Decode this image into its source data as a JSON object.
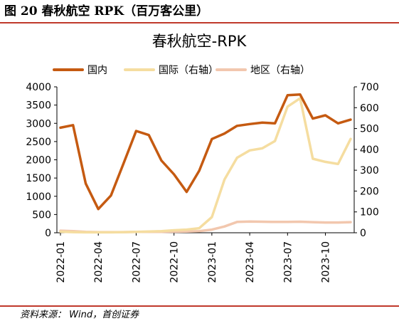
{
  "figure": {
    "label": "图 20 春秋航空 RPK（百万客公里）",
    "source": "资料来源： Wind，首创证券"
  },
  "chart_data": {
    "type": "line",
    "title": "春秋航空-RPK",
    "x": [
      "2022-01",
      "2022-02",
      "2022-03",
      "2022-04",
      "2022-05",
      "2022-06",
      "2022-07",
      "2022-08",
      "2022-09",
      "2022-10",
      "2022-11",
      "2022-12",
      "2023-01",
      "2023-02",
      "2023-03",
      "2023-04",
      "2023-05",
      "2023-06",
      "2023-07",
      "2023-08",
      "2023-09",
      "2023-10",
      "2023-11",
      "2023-12"
    ],
    "x_tick_labels": [
      "2022-01",
      "2022-04",
      "2022-07",
      "2022-10",
      "2023-01",
      "2023-04",
      "2023-07",
      "2023-10"
    ],
    "y_left": {
      "range": [
        0,
        4000
      ],
      "ticks": [
        "0",
        "500",
        "1000",
        "1500",
        "2000",
        "2500",
        "3000",
        "3500",
        "4000"
      ]
    },
    "y_right": {
      "range": [
        0,
        700
      ],
      "ticks": [
        "0",
        "100",
        "200",
        "300",
        "400",
        "500",
        "600",
        "700"
      ]
    },
    "legend_position": "top",
    "series": [
      {
        "name": "国内",
        "axis": "left",
        "color": "#c55a11",
        "width": 3.5,
        "values": [
          2880,
          2950,
          1350,
          650,
          1020,
          1900,
          2790,
          2680,
          1980,
          1600,
          1120,
          1700,
          2570,
          2720,
          2930,
          2980,
          3020,
          3000,
          3770,
          3790,
          3130,
          3220,
          3000,
          3100
        ]
      },
      {
        "name": "国际（右轴）",
        "axis": "right",
        "color": "#f5dda0",
        "width": 3.5,
        "values": [
          5,
          3,
          2,
          2,
          2,
          3,
          4,
          6,
          8,
          12,
          15,
          22,
          75,
          255,
          360,
          395,
          405,
          440,
          605,
          645,
          355,
          340,
          330,
          450
        ]
      },
      {
        "name": "地区（右轴）",
        "axis": "right",
        "color": "#f2c7ae",
        "width": 3.5,
        "values": [
          10,
          8,
          4,
          3,
          3,
          3,
          4,
          4,
          4,
          5,
          6,
          8,
          15,
          30,
          52,
          54,
          53,
          52,
          52,
          53,
          51,
          49,
          49,
          51
        ]
      }
    ]
  }
}
